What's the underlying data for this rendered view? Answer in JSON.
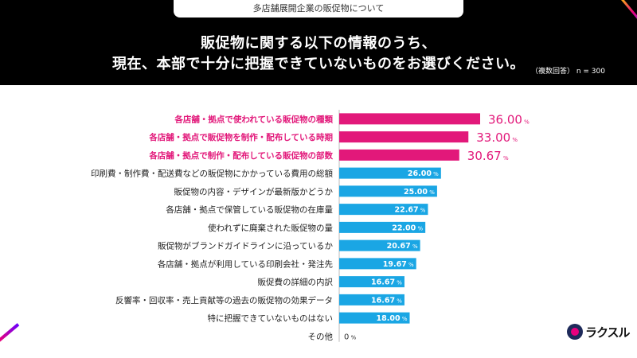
{
  "header": {
    "topic": "多店舗展開企業の販促物について",
    "question_line1": "販促物に関する以下の情報のうち、",
    "question_line2": "現在、本部で十分に把握できていないものをお選びください。",
    "sample_note": "（複数回答） n = 300"
  },
  "logo": {
    "text": "ラクスル"
  },
  "colors": {
    "highlight": "#e2187a",
    "normal": "#1aa6e4",
    "highlight_label": "#e2187a",
    "normal_label": "#222222"
  },
  "chart_data": {
    "type": "bar",
    "orientation": "horizontal",
    "unit": "%",
    "xlim": [
      0,
      36
    ],
    "categories": [
      "各店舗・拠点で使われている販促物の種類",
      "各店舗・拠点で販促物を制作・配布している時期",
      "各店舗・拠点で制作・配布している販促物の部数",
      "印刷費・制作費・配送費などの販促物にかかっている費用の総額",
      "販促物の内容・デザインが最新版かどうか",
      "各店舗・拠点で保管している販促物の在庫量",
      "使われずに廃棄された販促物の量",
      "販促物がブランドガイドラインに沿っているか",
      "各店舗・拠点が利用している印刷会社・発注先",
      "販促費の詳細の内訳",
      "反響率・回収率・売上貢献等の過去の販促物の効果データ",
      "特に把握できていないものはない",
      "その他"
    ],
    "values": [
      36.0,
      33.0,
      30.67,
      26.0,
      25.0,
      22.67,
      22.0,
      20.67,
      19.67,
      16.67,
      16.67,
      18.0,
      0
    ],
    "value_labels": [
      "36.00",
      "33.00",
      "30.67",
      "26.00",
      "25.00",
      "22.67",
      "22.00",
      "20.67",
      "19.67",
      "16.67",
      "16.67",
      "18.00",
      "0"
    ],
    "highlighted": [
      true,
      true,
      true,
      false,
      false,
      false,
      false,
      false,
      false,
      false,
      false,
      false,
      false
    ]
  }
}
